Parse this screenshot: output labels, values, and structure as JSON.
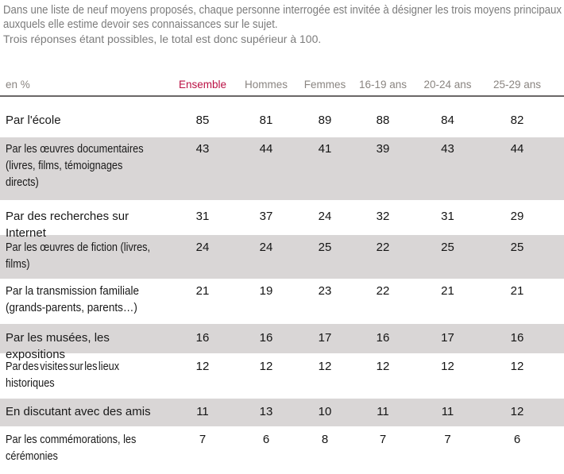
{
  "intro": {
    "line1": "Dans une liste de neuf moyens proposés, chaque personne interrogée est invitée à désigner les trois moyens principaux",
    "line2": "auxquels elle estime devoir ses connaissances sur le sujet.",
    "line3": "Trois réponses étant possibles, le total est donc supérieur à 100."
  },
  "table": {
    "unit_label": "en %",
    "columns": [
      "Ensemble",
      "Hommes",
      "Femmes",
      "16-19 ans",
      "20-24 ans",
      "25-29 ans"
    ],
    "rows": [
      {
        "label": "Par l'école",
        "values": [
          85,
          81,
          89,
          88,
          84,
          82
        ]
      },
      {
        "label": "Par les œuvres documentaires\n(livres, films, témoignages\ndirects)",
        "values": [
          43,
          44,
          41,
          39,
          43,
          44
        ]
      },
      {
        "label": "Par des recherches sur Internet",
        "values": [
          31,
          37,
          24,
          32,
          31,
          29
        ]
      },
      {
        "label": "Par les œuvres de fiction (livres,\nfilms)",
        "values": [
          24,
          24,
          25,
          22,
          25,
          25
        ]
      },
      {
        "label": "Par la transmission familiale\n(grands-parents, parents…)",
        "values": [
          21,
          19,
          23,
          22,
          21,
          21
        ]
      },
      {
        "label": "Par les musées, les expositions",
        "values": [
          16,
          16,
          17,
          16,
          17,
          16
        ]
      },
      {
        "label": "Par des visites sur les lieux\nhistoriques",
        "values": [
          12,
          12,
          12,
          12,
          12,
          12
        ]
      },
      {
        "label": "En discutant avec des amis",
        "values": [
          11,
          13,
          10,
          11,
          11,
          12
        ]
      },
      {
        "label": "Par les commémorations, les\ncérémonies",
        "values": [
          7,
          6,
          8,
          7,
          7,
          6
        ]
      }
    ]
  },
  "colors": {
    "accent": "#bb1144",
    "row_band": "#d9d6d6",
    "header_text": "#8a8581",
    "intro_text": "#7c7c7c"
  },
  "chart_data": {
    "type": "table",
    "title": "",
    "notes": [
      "Dans une liste de neuf moyens proposés, chaque personne interrogée est invitée à désigner les trois moyens principaux auxquels elle estime devoir ses connaissances sur le sujet.",
      "Trois réponses étant possibles, le total est donc supérieur à 100."
    ],
    "unit": "en %",
    "categories": [
      "Ensemble",
      "Hommes",
      "Femmes",
      "16-19 ans",
      "20-24 ans",
      "25-29 ans"
    ],
    "series": [
      {
        "name": "Par l'école",
        "values": [
          85,
          81,
          89,
          88,
          84,
          82
        ]
      },
      {
        "name": "Par les œuvres documentaires (livres, films, témoignages directs)",
        "values": [
          43,
          44,
          41,
          39,
          43,
          44
        ]
      },
      {
        "name": "Par des recherches sur Internet",
        "values": [
          31,
          37,
          24,
          32,
          31,
          29
        ]
      },
      {
        "name": "Par les œuvres de fiction (livres, films)",
        "values": [
          24,
          24,
          25,
          22,
          25,
          25
        ]
      },
      {
        "name": "Par la transmission familiale (grands-parents, parents…)",
        "values": [
          21,
          19,
          23,
          22,
          21,
          21
        ]
      },
      {
        "name": "Par les musées, les expositions",
        "values": [
          16,
          16,
          17,
          16,
          17,
          16
        ]
      },
      {
        "name": "Par des visites sur les lieux historiques",
        "values": [
          12,
          12,
          12,
          12,
          12,
          12
        ]
      },
      {
        "name": "En discutant avec des amis",
        "values": [
          11,
          13,
          10,
          11,
          11,
          12
        ]
      },
      {
        "name": "Par les commémorations, les cérémonies",
        "values": [
          7,
          6,
          8,
          7,
          7,
          6
        ]
      }
    ]
  }
}
